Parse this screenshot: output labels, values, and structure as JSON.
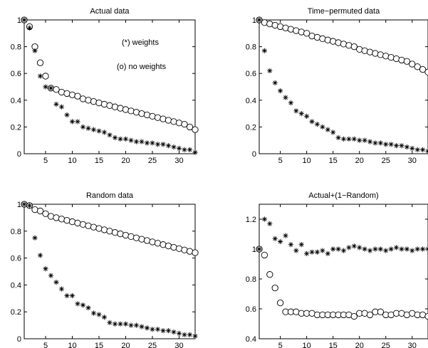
{
  "chart_data": [
    {
      "type": "scatter",
      "title": "Actual data",
      "xlim": [
        1,
        33
      ],
      "ylim": [
        0,
        1
      ],
      "xticks": [
        "5",
        "10",
        "15",
        "20",
        "25",
        "30"
      ],
      "yticks": [
        "0",
        "0.2",
        "0.4",
        "0.6",
        "0.8",
        "1"
      ],
      "annotations": [
        "(*) weights",
        "(o) no weights"
      ],
      "x": [
        1,
        2,
        3,
        4,
        5,
        6,
        7,
        8,
        9,
        10,
        11,
        12,
        13,
        14,
        15,
        16,
        17,
        18,
        19,
        20,
        21,
        22,
        23,
        24,
        25,
        26,
        27,
        28,
        29,
        30,
        31,
        32,
        33
      ],
      "series": [
        {
          "marker": "o",
          "values": [
            1.0,
            0.95,
            0.8,
            0.68,
            0.58,
            0.49,
            0.48,
            0.46,
            0.45,
            0.44,
            0.43,
            0.41,
            0.4,
            0.39,
            0.38,
            0.37,
            0.36,
            0.35,
            0.34,
            0.33,
            0.32,
            0.31,
            0.3,
            0.29,
            0.28,
            0.27,
            0.26,
            0.25,
            0.24,
            0.23,
            0.22,
            0.2,
            0.18
          ]
        },
        {
          "marker": "*",
          "values": [
            1.0,
            0.94,
            0.77,
            0.58,
            0.5,
            0.49,
            0.37,
            0.35,
            0.29,
            0.24,
            0.24,
            0.2,
            0.19,
            0.18,
            0.17,
            0.16,
            0.14,
            0.12,
            0.11,
            0.11,
            0.1,
            0.09,
            0.09,
            0.08,
            0.08,
            0.07,
            0.07,
            0.06,
            0.05,
            0.04,
            0.03,
            0.03,
            0.01
          ]
        }
      ]
    },
    {
      "type": "scatter",
      "title": "Time−permuted data",
      "xlim": [
        1,
        33
      ],
      "ylim": [
        0,
        1
      ],
      "xticks": [
        "5",
        "10",
        "15",
        "20",
        "25",
        "30"
      ],
      "yticks": [
        "0",
        "0.2",
        "0.4",
        "0.6",
        "0.8",
        "1"
      ],
      "annotations": [],
      "x": [
        1,
        2,
        3,
        4,
        5,
        6,
        7,
        8,
        9,
        10,
        11,
        12,
        13,
        14,
        15,
        16,
        17,
        18,
        19,
        20,
        21,
        22,
        23,
        24,
        25,
        26,
        27,
        28,
        29,
        30,
        31,
        32,
        33
      ],
      "series": [
        {
          "marker": "o",
          "values": [
            1.0,
            0.98,
            0.97,
            0.96,
            0.95,
            0.94,
            0.93,
            0.92,
            0.91,
            0.9,
            0.88,
            0.87,
            0.86,
            0.85,
            0.84,
            0.83,
            0.82,
            0.81,
            0.8,
            0.78,
            0.77,
            0.76,
            0.75,
            0.74,
            0.73,
            0.72,
            0.71,
            0.7,
            0.69,
            0.67,
            0.65,
            0.63,
            0.61
          ]
        },
        {
          "marker": "*",
          "values": [
            1.0,
            0.77,
            0.62,
            0.53,
            0.47,
            0.42,
            0.38,
            0.32,
            0.3,
            0.28,
            0.24,
            0.22,
            0.2,
            0.18,
            0.16,
            0.12,
            0.11,
            0.11,
            0.11,
            0.1,
            0.1,
            0.09,
            0.08,
            0.08,
            0.07,
            0.07,
            0.06,
            0.06,
            0.05,
            0.04,
            0.03,
            0.03,
            0.02
          ]
        }
      ]
    },
    {
      "type": "scatter",
      "title": "Random data",
      "xlim": [
        1,
        33
      ],
      "ylim": [
        0,
        1
      ],
      "xticks": [
        "5",
        "10",
        "15",
        "20",
        "25",
        "30"
      ],
      "yticks": [
        "0",
        "0.2",
        "0.4",
        "0.6",
        "0.8",
        "1"
      ],
      "annotations": [],
      "x": [
        1,
        2,
        3,
        4,
        5,
        6,
        7,
        8,
        9,
        10,
        11,
        12,
        13,
        14,
        15,
        16,
        17,
        18,
        19,
        20,
        21,
        22,
        23,
        24,
        25,
        26,
        27,
        28,
        29,
        30,
        31,
        32,
        33
      ],
      "series": [
        {
          "marker": "o",
          "values": [
            1.0,
            0.99,
            0.96,
            0.95,
            0.93,
            0.91,
            0.9,
            0.89,
            0.88,
            0.87,
            0.86,
            0.85,
            0.84,
            0.83,
            0.82,
            0.81,
            0.8,
            0.79,
            0.78,
            0.77,
            0.76,
            0.75,
            0.74,
            0.73,
            0.72,
            0.71,
            0.7,
            0.69,
            0.68,
            0.67,
            0.66,
            0.65,
            0.64
          ]
        },
        {
          "marker": "*",
          "values": [
            1.0,
            0.99,
            0.75,
            0.62,
            0.52,
            0.47,
            0.42,
            0.37,
            0.32,
            0.32,
            0.26,
            0.25,
            0.23,
            0.19,
            0.18,
            0.16,
            0.12,
            0.11,
            0.11,
            0.11,
            0.1,
            0.1,
            0.09,
            0.08,
            0.07,
            0.07,
            0.06,
            0.06,
            0.05,
            0.04,
            0.03,
            0.03,
            0.02
          ]
        }
      ]
    },
    {
      "type": "scatter",
      "title": "Actual+(1−Random)",
      "xlim": [
        1,
        33
      ],
      "ylim": [
        0.4,
        1.3
      ],
      "xticks": [
        "5",
        "10",
        "15",
        "20",
        "25",
        "30"
      ],
      "yticks": [
        "0.4",
        "0.6",
        "0.8",
        "1",
        "1.2"
      ],
      "annotations": [],
      "x": [
        1,
        2,
        3,
        4,
        5,
        6,
        7,
        8,
        9,
        10,
        11,
        12,
        13,
        14,
        15,
        16,
        17,
        18,
        19,
        20,
        21,
        22,
        23,
        24,
        25,
        26,
        27,
        28,
        29,
        30,
        31,
        32,
        33
      ],
      "series": [
        {
          "marker": "o",
          "values": [
            1.0,
            0.96,
            0.83,
            0.74,
            0.64,
            0.58,
            0.58,
            0.58,
            0.57,
            0.57,
            0.57,
            0.56,
            0.56,
            0.56,
            0.56,
            0.56,
            0.56,
            0.56,
            0.55,
            0.57,
            0.57,
            0.56,
            0.58,
            0.58,
            0.56,
            0.56,
            0.57,
            0.57,
            0.56,
            0.57,
            0.56,
            0.56,
            0.55
          ]
        },
        {
          "marker": "*",
          "values": [
            1.0,
            1.2,
            1.17,
            1.07,
            1.05,
            1.09,
            1.03,
            0.99,
            1.03,
            0.97,
            0.98,
            0.98,
            0.99,
            0.97,
            1.0,
            1.0,
            0.99,
            1.01,
            1.02,
            1.01,
            1.0,
            0.99,
            1.0,
            1.0,
            0.99,
            1.0,
            1.01,
            1.0,
            1.0,
            0.99,
            1.0,
            1.0,
            1.0
          ]
        }
      ]
    }
  ]
}
